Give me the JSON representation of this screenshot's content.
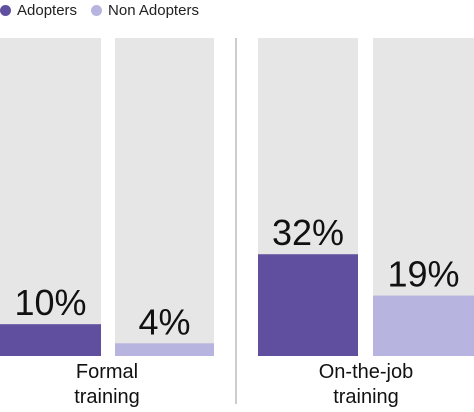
{
  "legend": {
    "adopters_label": "Adopters",
    "non_adopters_label": "Non Adopters"
  },
  "colors": {
    "adopters": "#5f4f9e",
    "non_adopters": "#b7b5df",
    "track": "#e6e6e6",
    "divider": "#999999"
  },
  "chart_data": {
    "type": "bar",
    "ylim": [
      0,
      100
    ],
    "groups": [
      {
        "category_lines": [
          "Formal",
          "training"
        ],
        "bars": [
          {
            "series": "Adopters",
            "value": 10,
            "label": "10%"
          },
          {
            "series": "Non Adopters",
            "value": 4,
            "label": "4%"
          }
        ]
      },
      {
        "category_lines": [
          "On-the-job",
          "training"
        ],
        "bars": [
          {
            "series": "Adopters",
            "value": 32,
            "label": "32%"
          },
          {
            "series": "Non Adopters",
            "value": 19,
            "label": "19%"
          }
        ]
      }
    ]
  }
}
